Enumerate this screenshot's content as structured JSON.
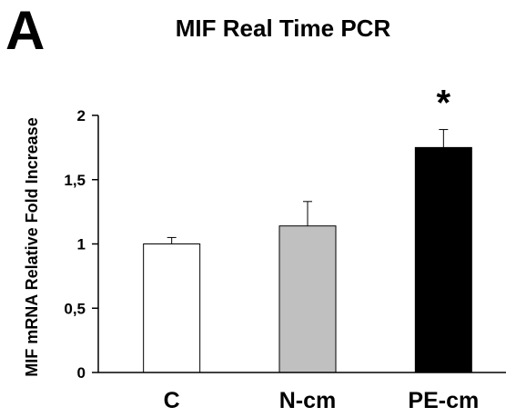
{
  "panel_label": "A",
  "chart_data": {
    "type": "bar",
    "title": "MIF Real Time PCR",
    "xlabel": "",
    "ylabel": "MIF mRNA Relative Fold Increase",
    "categories": [
      "C",
      "N-cm",
      "PE-cm"
    ],
    "values": [
      1.0,
      1.14,
      1.75
    ],
    "errors": [
      0.05,
      0.19,
      0.14
    ],
    "colors": [
      "#ffffff",
      "#c0c0c0",
      "#000000"
    ],
    "ylim": [
      0,
      2
    ],
    "yticks": [
      0,
      0.5,
      1,
      1.5,
      2
    ],
    "ytick_labels": [
      "0",
      "0,5",
      "1",
      "1,5",
      "2"
    ],
    "significance": [
      {
        "category": "PE-cm",
        "label": "*"
      }
    ],
    "grid": false,
    "legend": "none"
  }
}
